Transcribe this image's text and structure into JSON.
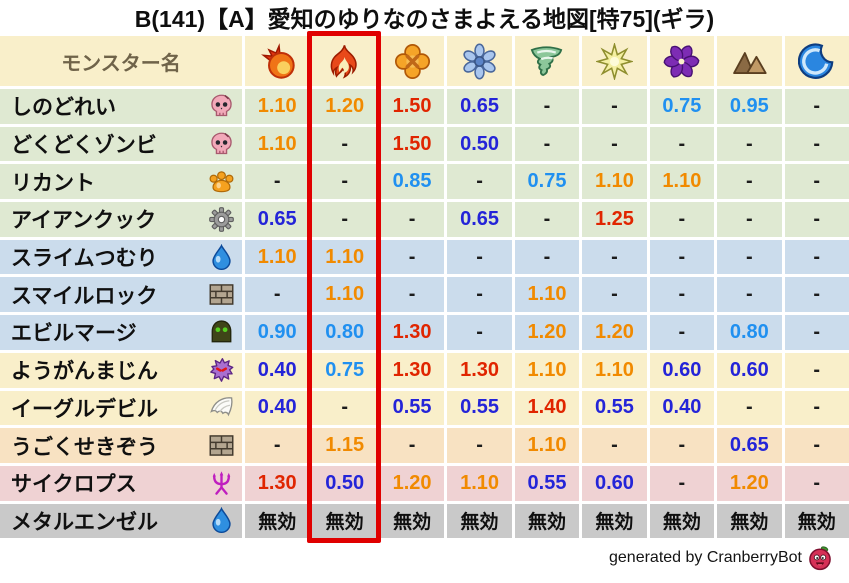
{
  "title": "B(141)【A】愛知のゆりなのさまよえる地図[特75](ギラ)",
  "chart_data": {
    "type": "table",
    "columns": {
      "monster_label": "モンスター名",
      "element_icons": [
        "fireball-icon",
        "flame-icon",
        "explosion-icon",
        "snowflake-icon",
        "tornado-icon",
        "spark-icon",
        "pinwheel-icon",
        "mountain-icon",
        "wave-icon"
      ]
    },
    "highlight": {
      "column_index": 1,
      "color": "#e00000"
    },
    "value_colors": {
      "strong_weakness_red": "#e02500",
      "weakness_orange": "#f18a00",
      "resist_light_blue": "#2090f0",
      "strong_resist_blue": "#2424d8",
      "immune_text": "#0f0f0f"
    },
    "rows": [
      {
        "name": "しのどれい",
        "family_icon": "skull-icon",
        "group": "green",
        "values": [
          "1.10",
          "1.20",
          "1.50",
          "0.65",
          "-",
          "-",
          "0.75",
          "0.95",
          "-"
        ]
      },
      {
        "name": "どくどくゾンビ",
        "family_icon": "skull-icon",
        "group": "green",
        "values": [
          "1.10",
          "-",
          "1.50",
          "0.50",
          "-",
          "-",
          "-",
          "-",
          "-"
        ]
      },
      {
        "name": "リカント",
        "family_icon": "paw-icon",
        "group": "green",
        "values": [
          "-",
          "-",
          "0.85",
          "-",
          "0.75",
          "1.10",
          "1.10",
          "-",
          "-"
        ]
      },
      {
        "name": "アイアンクック",
        "family_icon": "gear-icon",
        "group": "green",
        "values": [
          "0.65",
          "-",
          "-",
          "0.65",
          "-",
          "1.25",
          "-",
          "-",
          "-"
        ]
      },
      {
        "name": "スライムつむり",
        "family_icon": "slime-icon",
        "group": "blue",
        "values": [
          "1.10",
          "1.10",
          "-",
          "-",
          "-",
          "-",
          "-",
          "-",
          "-"
        ]
      },
      {
        "name": "スマイルロック",
        "family_icon": "brick-icon",
        "group": "blue",
        "values": [
          "-",
          "1.10",
          "-",
          "-",
          "1.10",
          "-",
          "-",
          "-",
          "-"
        ]
      },
      {
        "name": "エビルマージ",
        "family_icon": "hood-icon",
        "group": "blue",
        "values": [
          "0.90",
          "0.80",
          "1.30",
          "-",
          "1.20",
          "1.20",
          "-",
          "0.80",
          "-"
        ]
      },
      {
        "name": "ようがんまじん",
        "family_icon": "spiky-icon",
        "group": "cream",
        "values": [
          "0.40",
          "0.75",
          "1.30",
          "1.30",
          "1.10",
          "1.10",
          "0.60",
          "0.60",
          "-"
        ]
      },
      {
        "name": "イーグルデビル",
        "family_icon": "wing-icon",
        "group": "cream",
        "values": [
          "0.40",
          "-",
          "0.55",
          "0.55",
          "1.40",
          "0.55",
          "0.40",
          "-",
          "-"
        ]
      },
      {
        "name": "うごくせきぞう",
        "family_icon": "brick-icon",
        "group": "peach",
        "values": [
          "-",
          "1.15",
          "-",
          "-",
          "1.10",
          "-",
          "-",
          "0.65",
          "-"
        ]
      },
      {
        "name": "サイクロプス",
        "family_icon": "trident-icon",
        "group": "pink",
        "values": [
          "1.30",
          "0.50",
          "1.20",
          "1.10",
          "0.55",
          "0.60",
          "-",
          "1.20",
          "-"
        ]
      },
      {
        "name": "メタルエンゼル",
        "family_icon": "slime-icon",
        "group": "gray",
        "values": [
          "無効",
          "無効",
          "無効",
          "無効",
          "無効",
          "無効",
          "無効",
          "無効",
          "無効"
        ]
      }
    ]
  },
  "footer": {
    "credit": "generated by CranberryBot",
    "icon": "cranberry-icon"
  }
}
